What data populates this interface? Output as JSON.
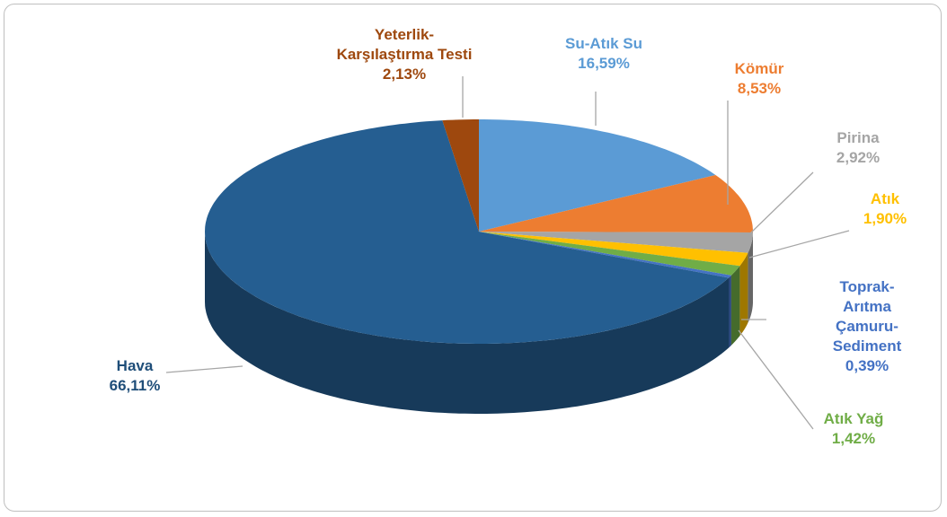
{
  "chart_data": {
    "type": "pie",
    "categories": [
      "Su-Atık Su",
      "Kömür",
      "Pirina",
      "Atık",
      "Atık Yağ",
      "Toprak-Arıtma\nÇamuru-Sediment",
      "Hava",
      "Yeterlik-\nKarşılaştırma Testi"
    ],
    "values": [
      16.59,
      8.53,
      2.92,
      1.9,
      1.42,
      0.39,
      66.11,
      2.13
    ],
    "value_labels": [
      "16,59%",
      "8,53%",
      "2,92%",
      "1,90%",
      "1,42%",
      "0,39%",
      "66,11%",
      "2,13%"
    ],
    "colors": [
      "#5b9bd5",
      "#ed7d31",
      "#a5a5a5",
      "#ffc000",
      "#70ad47",
      "#4472c4",
      "#255e91",
      "#9e480e"
    ]
  }
}
